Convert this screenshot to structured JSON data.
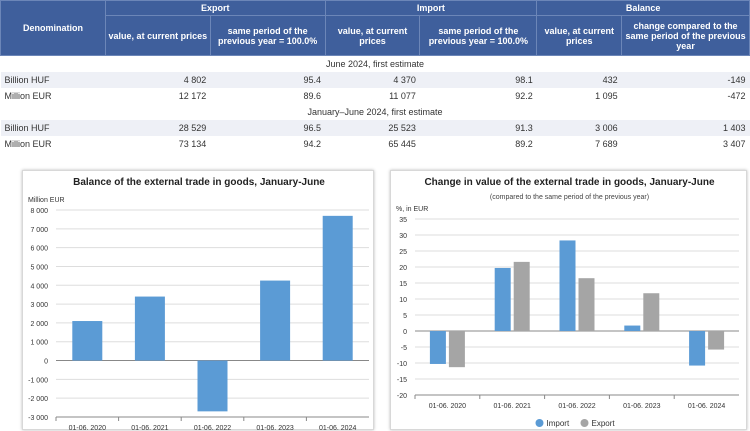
{
  "table": {
    "headers": {
      "denomination": "Denomination",
      "export": "Export",
      "import": "Import",
      "balance": "Balance",
      "sub": [
        "value, at current prices",
        "same period of the previous year = 100.0%",
        "value, at current prices",
        "same period of the previous year = 100.0%",
        "value, at current prices",
        "change compared to the same period of the previous year"
      ]
    },
    "sections": [
      {
        "title": "June 2024, first estimate",
        "rows": [
          {
            "label": "Billion HUF",
            "values": [
              "4 802",
              "95.4",
              "4 370",
              "98.1",
              "432",
              "-149"
            ]
          },
          {
            "label": "Million EUR",
            "values": [
              "12 172",
              "89.6",
              "11 077",
              "92.2",
              "1 095",
              "-472"
            ]
          }
        ]
      },
      {
        "title": "January–June 2024, first estimate",
        "rows": [
          {
            "label": "Billion HUF",
            "values": [
              "28 529",
              "96.5",
              "25 523",
              "91.3",
              "3 006",
              "1 403"
            ]
          },
          {
            "label": "Million EUR",
            "values": [
              "73 134",
              "94.2",
              "65 445",
              "89.2",
              "7 689",
              "3 407"
            ]
          }
        ]
      }
    ]
  },
  "chart_data": [
    {
      "type": "bar",
      "title": "Balance of the external trade in goods, January-June",
      "ylabel": "Million EUR",
      "ylim": [
        -3000,
        8000
      ],
      "yticks": [
        "8 000",
        "7 000",
        "6 000",
        "5 000",
        "4 000",
        "3 000",
        "2 000",
        "1 000",
        "0",
        "-1 000",
        "-2 000",
        "-3 000"
      ],
      "tick_values": [
        8000,
        7000,
        6000,
        5000,
        4000,
        3000,
        2000,
        1000,
        0,
        -1000,
        -2000,
        -3000
      ],
      "categories": [
        "01-06. 2020",
        "01-06. 2021",
        "01-06. 2022",
        "01-06. 2023",
        "01-06. 2024"
      ],
      "values": [
        2100,
        3400,
        -2700,
        4250,
        7689
      ],
      "color": "#5b9bd5",
      "grid": true
    },
    {
      "type": "bar",
      "title": "Change in value of the external trade in goods, January-June",
      "subtitle": "(compared to the same period of the previous year)",
      "ylabel": "%, in EUR",
      "ylim": [
        -20,
        35
      ],
      "yticks": [
        "35",
        "30",
        "25",
        "20",
        "15",
        "10",
        "5",
        "0",
        "-5",
        "-10",
        "-15",
        "-20"
      ],
      "tick_values": [
        35,
        30,
        25,
        20,
        15,
        10,
        5,
        0,
        -5,
        -10,
        -15,
        -20
      ],
      "categories": [
        "01-06. 2020",
        "01-06. 2021",
        "01-06. 2022",
        "01-06. 2023",
        "01-06. 2024"
      ],
      "series": [
        {
          "name": "Import",
          "values": [
            -10.3,
            19.7,
            28.3,
            1.7,
            -10.8
          ],
          "color": "#5b9bd5"
        },
        {
          "name": "Export",
          "values": [
            -11.3,
            21.6,
            16.5,
            11.8,
            -5.8
          ],
          "color": "#a5a5a5"
        }
      ],
      "legend": "bottom",
      "grid": true
    }
  ]
}
